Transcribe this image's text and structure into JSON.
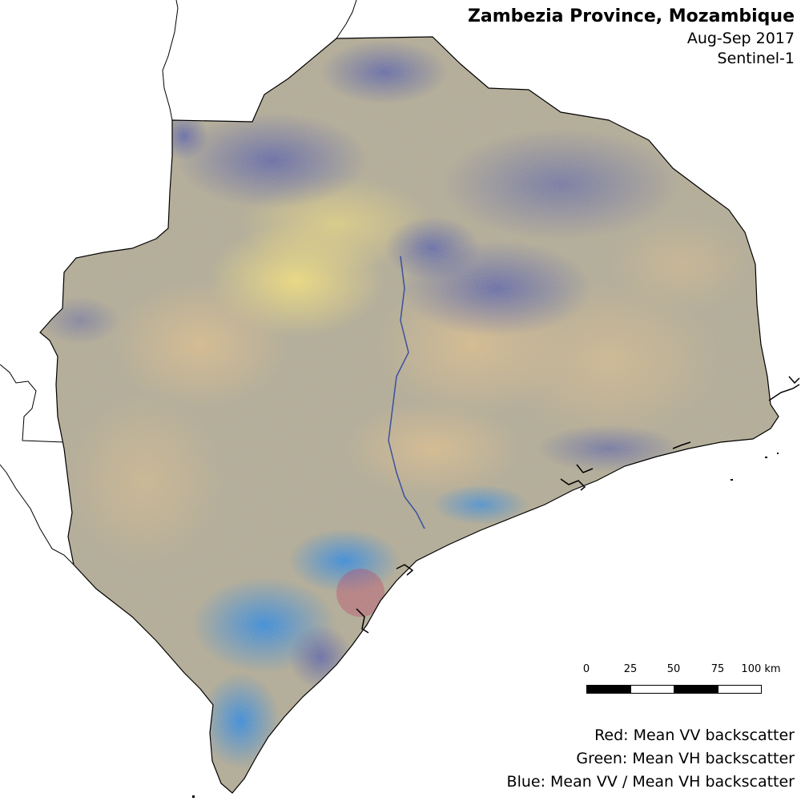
{
  "title": "Zambezia Province, Mozambique",
  "subtitle_date": "Aug-Sep 2017",
  "subtitle_sensor": "Sentinel-1",
  "scale_bar": {
    "labels": [
      "0",
      "25",
      "50",
      "75",
      "100 km"
    ]
  },
  "legend": {
    "red": "Red: Mean VV backscatter",
    "green": "Green: Mean VH backscatter",
    "blue": "Blue: Mean VV / Mean VH backscatter"
  },
  "colors": {
    "land_base": "#b8b08a",
    "yellow_zones": "#e8d680",
    "purple_zones": "#6a6fa8",
    "blue_wetland": "#3e8ad8",
    "border_line": "#000000"
  }
}
